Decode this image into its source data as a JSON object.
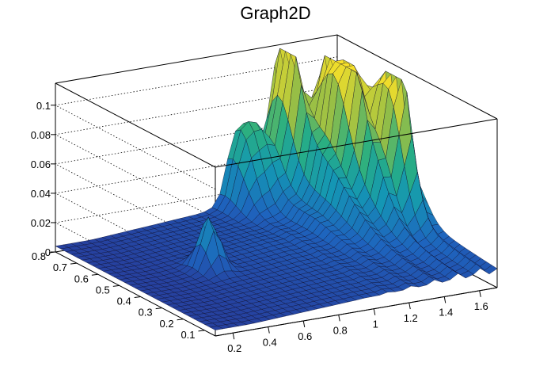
{
  "chart_data": {
    "type": "surface",
    "title": "Graph2D",
    "xlabel": "",
    "ylabel": "",
    "zlabel": "",
    "xlim": [
      0.1,
      1.7
    ],
    "ylim": [
      0.05,
      0.8
    ],
    "zlim": [
      0,
      0.115
    ],
    "x_ticks": [
      "0.2",
      "0.4",
      "0.6",
      "0.8",
      "1",
      "1.2",
      "1.4",
      "1.6"
    ],
    "y_ticks": [
      "0.1",
      "0.2",
      "0.3",
      "0.4",
      "0.5",
      "0.6",
      "0.7",
      "0.8"
    ],
    "z_ticks": [
      "0",
      "0.02",
      "0.04",
      "0.06",
      "0.08",
      "0.1"
    ],
    "grid": true,
    "colormap": "viridis-like (blue to yellow)",
    "surface_features": [
      {
        "x": 0.55,
        "y": 0.45,
        "z": 0.035,
        "width": 0.06
      },
      {
        "x": 1.15,
        "y": 0.78,
        "z": 0.06
      },
      {
        "x": 1.35,
        "y": 0.75,
        "z": 0.085
      },
      {
        "x": 1.5,
        "y": 0.6,
        "z": 0.1
      },
      {
        "x": 1.6,
        "y": 0.45,
        "z": 0.085
      }
    ]
  },
  "colors": {
    "background": "#ffffff",
    "axes": "#000000",
    "grid": "#000000",
    "low": "#243a94",
    "mid": "#1c8fa6",
    "high": "#f5dc2a"
  }
}
